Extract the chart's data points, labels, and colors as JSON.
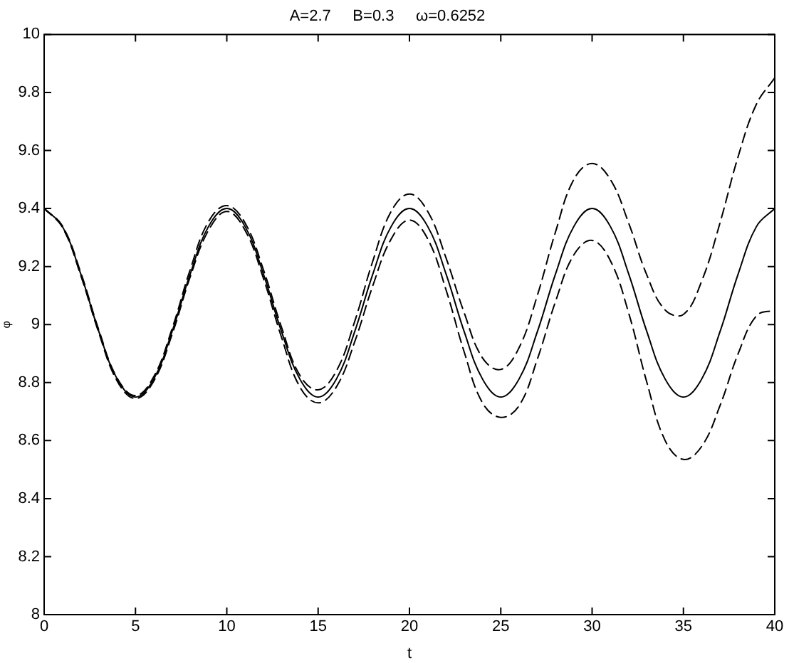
{
  "chart_data": {
    "type": "line",
    "title": "A=2.7     B=0.3     ω=0.6252",
    "xlabel": "t",
    "ylabel": "φ",
    "x": [
      0,
      1,
      2,
      3,
      4,
      5,
      6,
      7,
      8,
      9,
      10,
      11,
      12,
      13,
      14,
      15,
      16,
      17,
      18,
      19,
      20,
      21,
      22,
      23,
      24,
      25,
      26,
      27,
      28,
      29,
      30,
      31,
      32,
      33,
      34,
      35,
      36,
      37,
      38,
      39,
      40
    ],
    "series": [
      {
        "color": "#000000",
        "line_style": "solid",
        "values": [
          9.4,
          9.338,
          9.175,
          8.975,
          8.812,
          8.75,
          8.812,
          8.975,
          9.175,
          9.338,
          9.4,
          9.338,
          9.175,
          8.975,
          8.812,
          8.75,
          8.812,
          8.975,
          9.175,
          9.338,
          9.4,
          9.338,
          9.175,
          8.975,
          8.812,
          8.75,
          8.812,
          8.975,
          9.175,
          9.338,
          9.4,
          9.338,
          9.175,
          8.975,
          8.812,
          8.75,
          8.812,
          8.975,
          9.175,
          9.338,
          9.4
        ]
      },
      {
        "color": "#000000",
        "line_style": "dashed",
        "values": [
          9.4,
          9.34,
          9.18,
          8.98,
          8.815,
          8.755,
          8.82,
          8.985,
          9.19,
          9.355,
          9.41,
          9.35,
          9.19,
          8.99,
          8.825,
          8.775,
          8.84,
          9.01,
          9.22,
          9.39,
          9.45,
          9.39,
          9.23,
          9.04,
          8.885,
          8.845,
          8.92,
          9.1,
          9.32,
          9.5,
          9.555,
          9.5,
          9.35,
          9.17,
          9.05,
          9.035,
          9.15,
          9.35,
          9.58,
          9.76,
          9.85
        ]
      },
      {
        "color": "#000000",
        "line_style": "dashed",
        "values": [
          9.4,
          9.335,
          9.17,
          8.97,
          8.805,
          8.745,
          8.805,
          8.965,
          9.165,
          9.325,
          9.39,
          9.325,
          9.16,
          8.955,
          8.785,
          8.73,
          8.785,
          8.94,
          9.135,
          9.295,
          9.36,
          9.295,
          9.12,
          8.905,
          8.73,
          8.68,
          8.72,
          8.88,
          9.08,
          9.24,
          9.29,
          9.22,
          9.04,
          8.8,
          8.6,
          8.535,
          8.58,
          8.72,
          8.9,
          9.03,
          9.05
        ]
      }
    ],
    "xlim": [
      0,
      40
    ],
    "xticks": [
      0,
      5,
      10,
      15,
      20,
      25,
      30,
      35,
      40
    ],
    "ylim": [
      8,
      10
    ],
    "yticks": [
      8,
      8.2,
      8.4,
      8.6,
      8.8,
      9,
      9.2,
      9.4,
      9.6,
      9.8,
      10
    ],
    "grid": false,
    "legend": false,
    "marker": "none"
  }
}
